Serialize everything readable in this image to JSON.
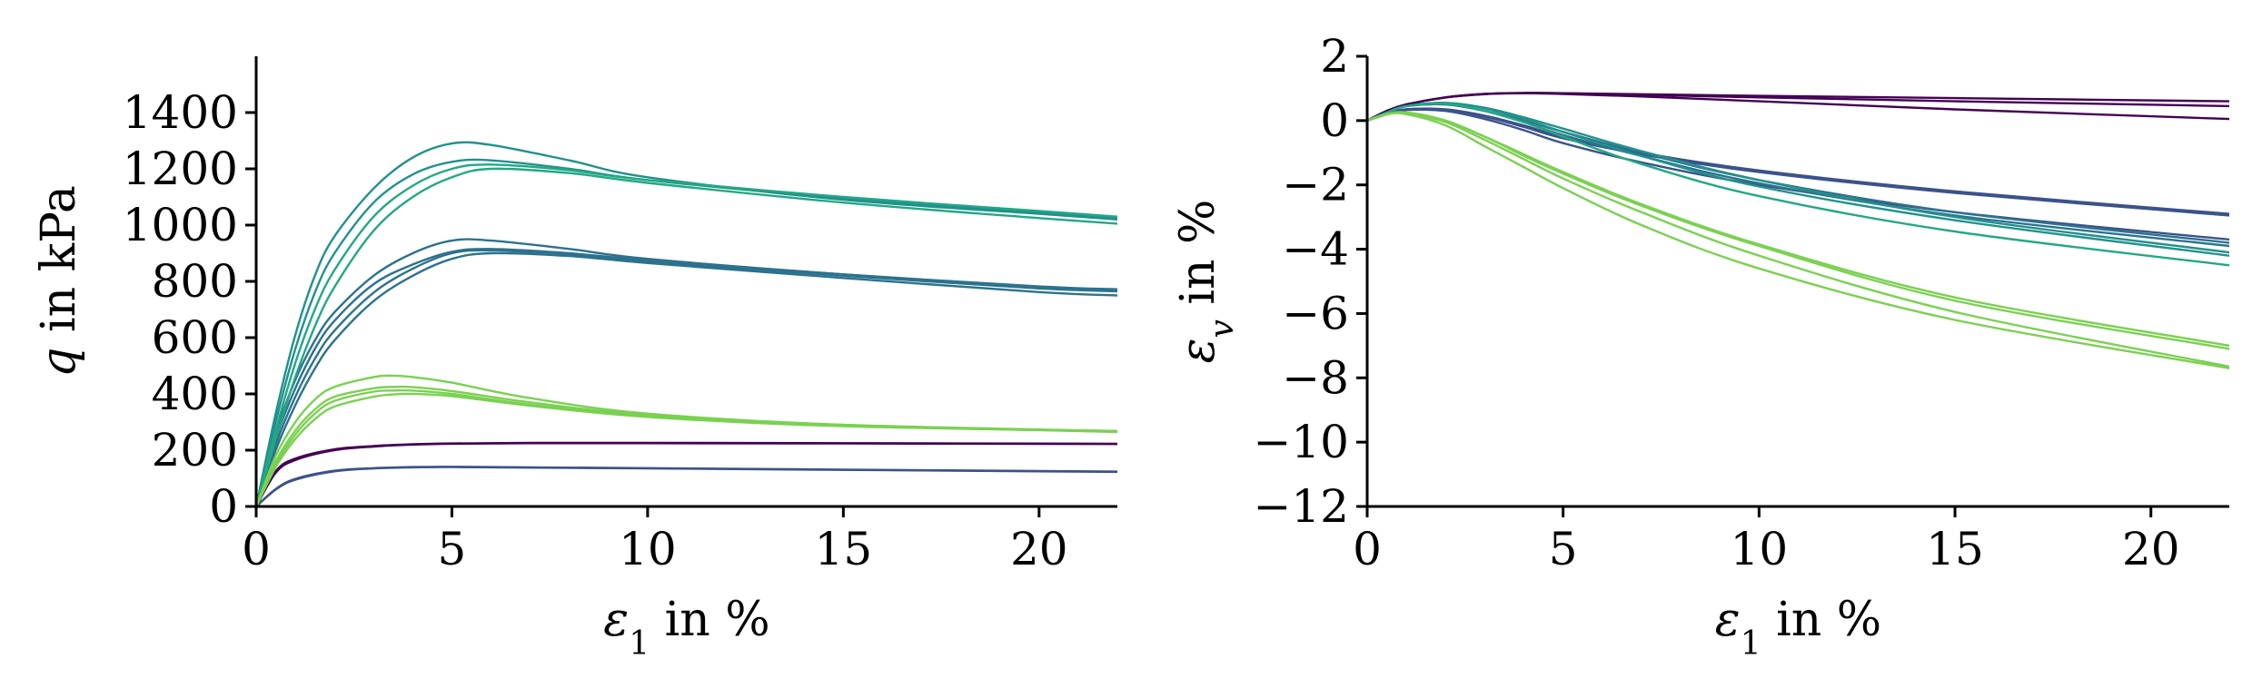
{
  "chart_data": [
    {
      "type": "line",
      "xlabel": "ε1 in %",
      "ylabel": "q in kPa",
      "xlim": [
        0,
        22
      ],
      "ylim": [
        0,
        1600
      ],
      "xticks": [
        0,
        5,
        10,
        15,
        20
      ],
      "yticks": [
        0,
        200,
        400,
        600,
        800,
        1000,
        1200,
        1400
      ],
      "xtick_labels": [
        "0",
        "5",
        "10",
        "15",
        "20"
      ],
      "ytick_labels": [
        "0",
        "200",
        "400",
        "600",
        "800",
        "1000",
        "1200",
        "1400"
      ],
      "grid": false,
      "series": [
        {
          "color": "#440154",
          "x": [
            0,
            0.5,
            1,
            2,
            3,
            4,
            5,
            7,
            10,
            15,
            22
          ],
          "y": [
            0,
            120,
            165,
            200,
            213,
            220,
            223,
            225,
            225,
            224,
            222
          ]
        },
        {
          "color": "#440154",
          "x": [
            0,
            0.5,
            1,
            2,
            3,
            4,
            5,
            7,
            10,
            15,
            22
          ],
          "y": [
            0,
            125,
            170,
            203,
            215,
            221,
            224,
            226,
            226,
            225,
            223
          ]
        },
        {
          "color": "#3b528b",
          "x": [
            0,
            0.5,
            1,
            2,
            3,
            4,
            5,
            7,
            10,
            15,
            22
          ],
          "y": [
            0,
            60,
            95,
            125,
            135,
            139,
            140,
            138,
            135,
            130,
            123
          ]
        },
        {
          "color": "#3b528b",
          "x": [
            0,
            0.5,
            1,
            2,
            3,
            4,
            5,
            7,
            10,
            15,
            22
          ],
          "y": [
            0,
            62,
            98,
            127,
            136,
            140,
            141,
            139,
            136,
            131,
            124
          ]
        },
        {
          "color": "#2c728e",
          "x": [
            0,
            0.5,
            1,
            1.5,
            2,
            3,
            4,
            5,
            6,
            8,
            10,
            15,
            20,
            22
          ],
          "y": [
            0,
            260,
            450,
            590,
            690,
            820,
            900,
            945,
            945,
            915,
            880,
            825,
            780,
            770
          ]
        },
        {
          "color": "#2c728e",
          "x": [
            0,
            0.5,
            1,
            1.5,
            2,
            3,
            4,
            5,
            6,
            8,
            10,
            15,
            20,
            22
          ],
          "y": [
            0,
            240,
            420,
            560,
            660,
            790,
            860,
            905,
            915,
            900,
            875,
            825,
            782,
            772
          ]
        },
        {
          "color": "#2c728e",
          "x": [
            0,
            0.5,
            1,
            1.5,
            2,
            3,
            4,
            5,
            6,
            8,
            10,
            15,
            20,
            22
          ],
          "y": [
            0,
            220,
            390,
            525,
            625,
            760,
            845,
            900,
            910,
            895,
            870,
            820,
            775,
            765
          ]
        },
        {
          "color": "#2c728e",
          "x": [
            0,
            0.5,
            1,
            1.5,
            2,
            3,
            4,
            5,
            6,
            8,
            10,
            15,
            20,
            22
          ],
          "y": [
            0,
            200,
            360,
            490,
            590,
            730,
            820,
            880,
            900,
            890,
            865,
            812,
            762,
            750
          ]
        },
        {
          "color": "#21918c",
          "x": [
            0,
            0.5,
            1,
            1.5,
            2,
            3,
            4,
            5,
            6,
            8,
            10,
            15,
            20,
            22
          ],
          "y": [
            0,
            330,
            610,
            820,
            960,
            1130,
            1240,
            1290,
            1285,
            1230,
            1170,
            1090,
            1040,
            1020
          ]
        },
        {
          "color": "#21918c",
          "x": [
            0,
            0.5,
            1,
            1.5,
            2,
            3,
            4,
            5,
            6,
            8,
            10,
            15,
            20,
            22
          ],
          "y": [
            0,
            300,
            560,
            760,
            900,
            1080,
            1180,
            1225,
            1230,
            1200,
            1160,
            1095,
            1045,
            1025
          ]
        },
        {
          "color": "#22a884",
          "x": [
            0,
            0.5,
            1,
            1.5,
            2,
            3,
            4,
            5,
            6,
            8,
            10,
            15,
            20,
            22
          ],
          "y": [
            0,
            270,
            510,
            700,
            840,
            1030,
            1140,
            1200,
            1215,
            1195,
            1160,
            1100,
            1050,
            1030
          ]
        },
        {
          "color": "#22a884",
          "x": [
            0,
            0.5,
            1,
            1.5,
            2,
            3,
            4,
            5,
            6,
            8,
            10,
            15,
            20,
            22
          ],
          "y": [
            0,
            240,
            460,
            640,
            780,
            980,
            1100,
            1170,
            1200,
            1185,
            1150,
            1080,
            1025,
            1005
          ]
        },
        {
          "color": "#7ad151",
          "x": [
            0,
            0.5,
            1,
            1.5,
            2,
            3,
            3.5,
            4,
            5,
            7,
            10,
            15,
            22
          ],
          "y": [
            0,
            180,
            300,
            380,
            425,
            460,
            465,
            460,
            440,
            385,
            330,
            290,
            265
          ]
        },
        {
          "color": "#7ad151",
          "x": [
            0,
            0.5,
            1,
            1.5,
            2,
            3,
            3.5,
            4,
            5,
            7,
            10,
            15,
            22
          ],
          "y": [
            0,
            160,
            270,
            345,
            390,
            420,
            425,
            424,
            410,
            370,
            325,
            290,
            268
          ]
        },
        {
          "color": "#7ad151",
          "x": [
            0,
            0.5,
            1,
            1.5,
            2,
            3,
            3.5,
            4,
            5,
            7,
            10,
            15,
            22
          ],
          "y": [
            0,
            150,
            255,
            330,
            375,
            408,
            412,
            412,
            400,
            362,
            320,
            287,
            266
          ]
        },
        {
          "color": "#7ad151",
          "x": [
            0,
            0.5,
            1,
            1.5,
            2,
            3,
            3.5,
            4,
            5,
            7,
            10,
            15,
            22
          ],
          "y": [
            0,
            140,
            240,
            310,
            355,
            390,
            398,
            400,
            392,
            358,
            318,
            285,
            268
          ]
        }
      ]
    },
    {
      "type": "line",
      "xlabel": "ε1 in %",
      "ylabel": "εv in %",
      "xlim": [
        0,
        22
      ],
      "ylim": [
        -12,
        2
      ],
      "xticks": [
        0,
        5,
        10,
        15,
        20
      ],
      "yticks": [
        -12,
        -10,
        -8,
        -6,
        -4,
        -2,
        0,
        2
      ],
      "xtick_labels": [
        "0",
        "5",
        "10",
        "15",
        "20"
      ],
      "ytick_labels": [
        "−12",
        "−10",
        "−8",
        "−6",
        "−4",
        "−2",
        "0",
        "2"
      ],
      "grid": false,
      "series": [
        {
          "color": "#440154",
          "x": [
            0,
            0.5,
            1,
            2,
            3,
            4,
            5,
            7,
            10,
            15,
            22
          ],
          "y": [
            0,
            0.3,
            0.5,
            0.72,
            0.82,
            0.85,
            0.83,
            0.75,
            0.6,
            0.35,
            0.05
          ]
        },
        {
          "color": "#440154",
          "x": [
            0,
            0.5,
            1,
            2,
            3,
            4,
            5,
            7,
            10,
            15,
            22
          ],
          "y": [
            0,
            0.3,
            0.5,
            0.72,
            0.83,
            0.86,
            0.85,
            0.8,
            0.72,
            0.6,
            0.45
          ]
        },
        {
          "color": "#440154",
          "x": [
            0,
            0.5,
            1,
            2,
            3,
            4,
            5,
            7,
            10,
            15,
            22
          ],
          "y": [
            0,
            0.3,
            0.5,
            0.72,
            0.83,
            0.86,
            0.85,
            0.82,
            0.77,
            0.7,
            0.6
          ]
        },
        {
          "color": "#3b528b",
          "x": [
            0,
            0.5,
            1,
            2,
            3,
            4,
            5,
            7,
            10,
            15,
            22
          ],
          "y": [
            0,
            0.2,
            0.35,
            0.35,
            0.15,
            -0.15,
            -0.5,
            -1.0,
            -1.55,
            -2.2,
            -2.9
          ]
        },
        {
          "color": "#3b528b",
          "x": [
            0,
            0.5,
            1,
            2,
            3,
            4,
            5,
            7,
            10,
            15,
            22
          ],
          "y": [
            0,
            0.2,
            0.35,
            0.33,
            0.12,
            -0.2,
            -0.55,
            -1.05,
            -1.6,
            -2.25,
            -2.95
          ]
        },
        {
          "color": "#3b528b",
          "x": [
            0,
            0.5,
            1,
            2,
            3,
            4,
            5,
            7,
            10,
            15,
            22
          ],
          "y": [
            0,
            0.2,
            0.33,
            0.3,
            0.05,
            -0.3,
            -0.7,
            -1.3,
            -2.0,
            -2.85,
            -3.7
          ]
        },
        {
          "color": "#2c728e",
          "x": [
            0,
            0.5,
            1,
            2,
            3,
            4,
            5,
            7,
            10,
            15,
            22
          ],
          "y": [
            0,
            0.25,
            0.45,
            0.5,
            0.3,
            0,
            -0.35,
            -1.0,
            -1.85,
            -2.85,
            -3.8
          ]
        },
        {
          "color": "#2c728e",
          "x": [
            0,
            0.5,
            1,
            2,
            3,
            4,
            5,
            7,
            10,
            15,
            22
          ],
          "y": [
            0,
            0.25,
            0.45,
            0.5,
            0.3,
            -0.05,
            -0.45,
            -1.1,
            -1.95,
            -2.95,
            -3.9
          ]
        },
        {
          "color": "#21918c",
          "x": [
            0,
            0.5,
            1,
            2,
            3,
            4,
            5,
            7,
            10,
            15,
            22
          ],
          "y": [
            0,
            0.25,
            0.45,
            0.55,
            0.4,
            0.1,
            -0.25,
            -0.95,
            -1.85,
            -3.0,
            -4.1
          ]
        },
        {
          "color": "#21918c",
          "x": [
            0,
            0.5,
            1,
            2,
            3,
            4,
            5,
            7,
            10,
            15,
            22
          ],
          "y": [
            0,
            0.25,
            0.45,
            0.55,
            0.38,
            0.05,
            -0.35,
            -1.1,
            -2.05,
            -3.1,
            -4.2
          ]
        },
        {
          "color": "#22a884",
          "x": [
            0,
            0.5,
            1,
            2,
            3,
            4,
            5,
            7,
            10,
            15,
            22
          ],
          "y": [
            0,
            0.25,
            0.45,
            0.52,
            0.3,
            -0.05,
            -0.5,
            -1.35,
            -2.35,
            -3.45,
            -4.5
          ]
        },
        {
          "color": "#7ad151",
          "x": [
            0,
            0.5,
            1,
            2,
            3,
            4,
            5,
            7,
            10,
            15,
            22
          ],
          "y": [
            0,
            0.2,
            0.25,
            0,
            -0.5,
            -1.05,
            -1.6,
            -2.6,
            -3.85,
            -5.5,
            -7.0
          ]
        },
        {
          "color": "#7ad151",
          "x": [
            0,
            0.5,
            1,
            2,
            3,
            4,
            5,
            7,
            10,
            15,
            22
          ],
          "y": [
            0,
            0.2,
            0.25,
            0,
            -0.5,
            -1.1,
            -1.65,
            -2.65,
            -3.9,
            -5.6,
            -7.1
          ]
        },
        {
          "color": "#7ad151",
          "x": [
            0,
            0.5,
            1,
            2,
            3,
            4,
            5,
            7,
            10,
            15,
            22
          ],
          "y": [
            0,
            0.2,
            0.22,
            -0.05,
            -0.6,
            -1.2,
            -1.8,
            -2.85,
            -4.2,
            -5.95,
            -7.65
          ]
        },
        {
          "color": "#7ad151",
          "x": [
            0,
            0.5,
            1,
            2,
            3,
            4,
            5,
            7,
            10,
            15,
            22
          ],
          "y": [
            0,
            0.2,
            0.2,
            -0.15,
            -0.8,
            -1.45,
            -2.1,
            -3.25,
            -4.6,
            -6.2,
            -7.7
          ]
        }
      ]
    }
  ]
}
